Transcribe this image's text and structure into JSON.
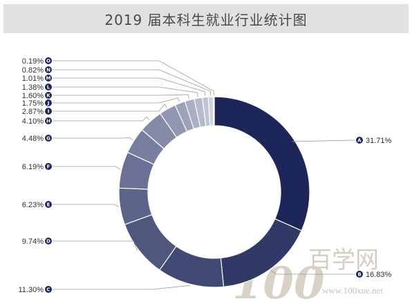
{
  "title": "2019 届本科生就业行业统计图",
  "watermark": {
    "digits": "100",
    "chinese": "百学网",
    "url": "www.100xue.net"
  },
  "colors": {
    "darkest": "#1d2658",
    "lightest": "#d7dbe8",
    "title_bg": "#e1e1e1"
  },
  "chart_data": {
    "type": "pie",
    "donut": true,
    "title": "2019 届本科生就业行业统计图",
    "slices": [
      {
        "key": "A",
        "label": "31.71%",
        "value": 31.71
      },
      {
        "key": "B",
        "label": "16.83%",
        "value": 16.83
      },
      {
        "key": "C",
        "label": "11.30%",
        "value": 11.3
      },
      {
        "key": "D",
        "label": "9.74%",
        "value": 9.74
      },
      {
        "key": "E",
        "label": "6.23%",
        "value": 6.23
      },
      {
        "key": "F",
        "label": "6.19%",
        "value": 6.19
      },
      {
        "key": "G",
        "label": "4.48%",
        "value": 4.48
      },
      {
        "key": "H",
        "label": "4.10%",
        "value": 4.1
      },
      {
        "key": "I",
        "label": "2.87%",
        "value": 2.87
      },
      {
        "key": "J",
        "label": "1.75%",
        "value": 1.75
      },
      {
        "key": "K",
        "label": "1.60%",
        "value": 1.6
      },
      {
        "key": "L",
        "label": "1.38%",
        "value": 1.38
      },
      {
        "key": "M",
        "label": "1.01%",
        "value": 1.01
      },
      {
        "key": "N",
        "label": "0.82%",
        "value": 0.82
      },
      {
        "key": "O",
        "label": "0.19%",
        "value": 0.19
      }
    ]
  }
}
